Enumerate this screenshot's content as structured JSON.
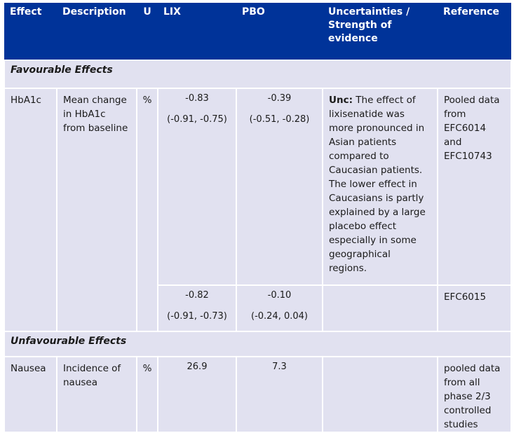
{
  "headers": {
    "effect": "Effect",
    "description": "Description",
    "unit": "U",
    "lix": "LIX",
    "pbo": "PBO",
    "uncertainties": "Uncertainties / Strength of evidence",
    "reference": "Reference"
  },
  "favourable_title": "Favourable Effects",
  "unfavourable_title": "Unfavourable Effects",
  "hba1c": {
    "effect": "HbA1c",
    "description": "Mean change in HbA1c from baseline",
    "unit": "%",
    "row1": {
      "lix_value": "-0.83",
      "lix_ci": "(-0.91, -0.75)",
      "pbo_value": "-0.39",
      "pbo_ci": "(-0.51, -0.28)",
      "unc_label": "Unc:",
      "unc_text": "The effect of lixisenatide was more pronounced in Asian patients compared to Caucasian patients. The lower effect in Caucasians is partly explained by a large placebo effect especially in some geographical regions.",
      "reference": "Pooled data from EFC6014 and EFC10743"
    },
    "row2": {
      "lix_value": "-0.82",
      "lix_ci": "(-0.91, -0.73)",
      "pbo_value": "-0.10",
      "pbo_ci": "(-0.24, 0.04)",
      "reference": "EFC6015"
    }
  },
  "nausea": {
    "effect": "Nausea",
    "description": "Incidence of nausea",
    "unit": "%",
    "lix_value": "26.9",
    "pbo_value": "7.3",
    "reference": "pooled data from all phase 2/3 controlled studies"
  }
}
